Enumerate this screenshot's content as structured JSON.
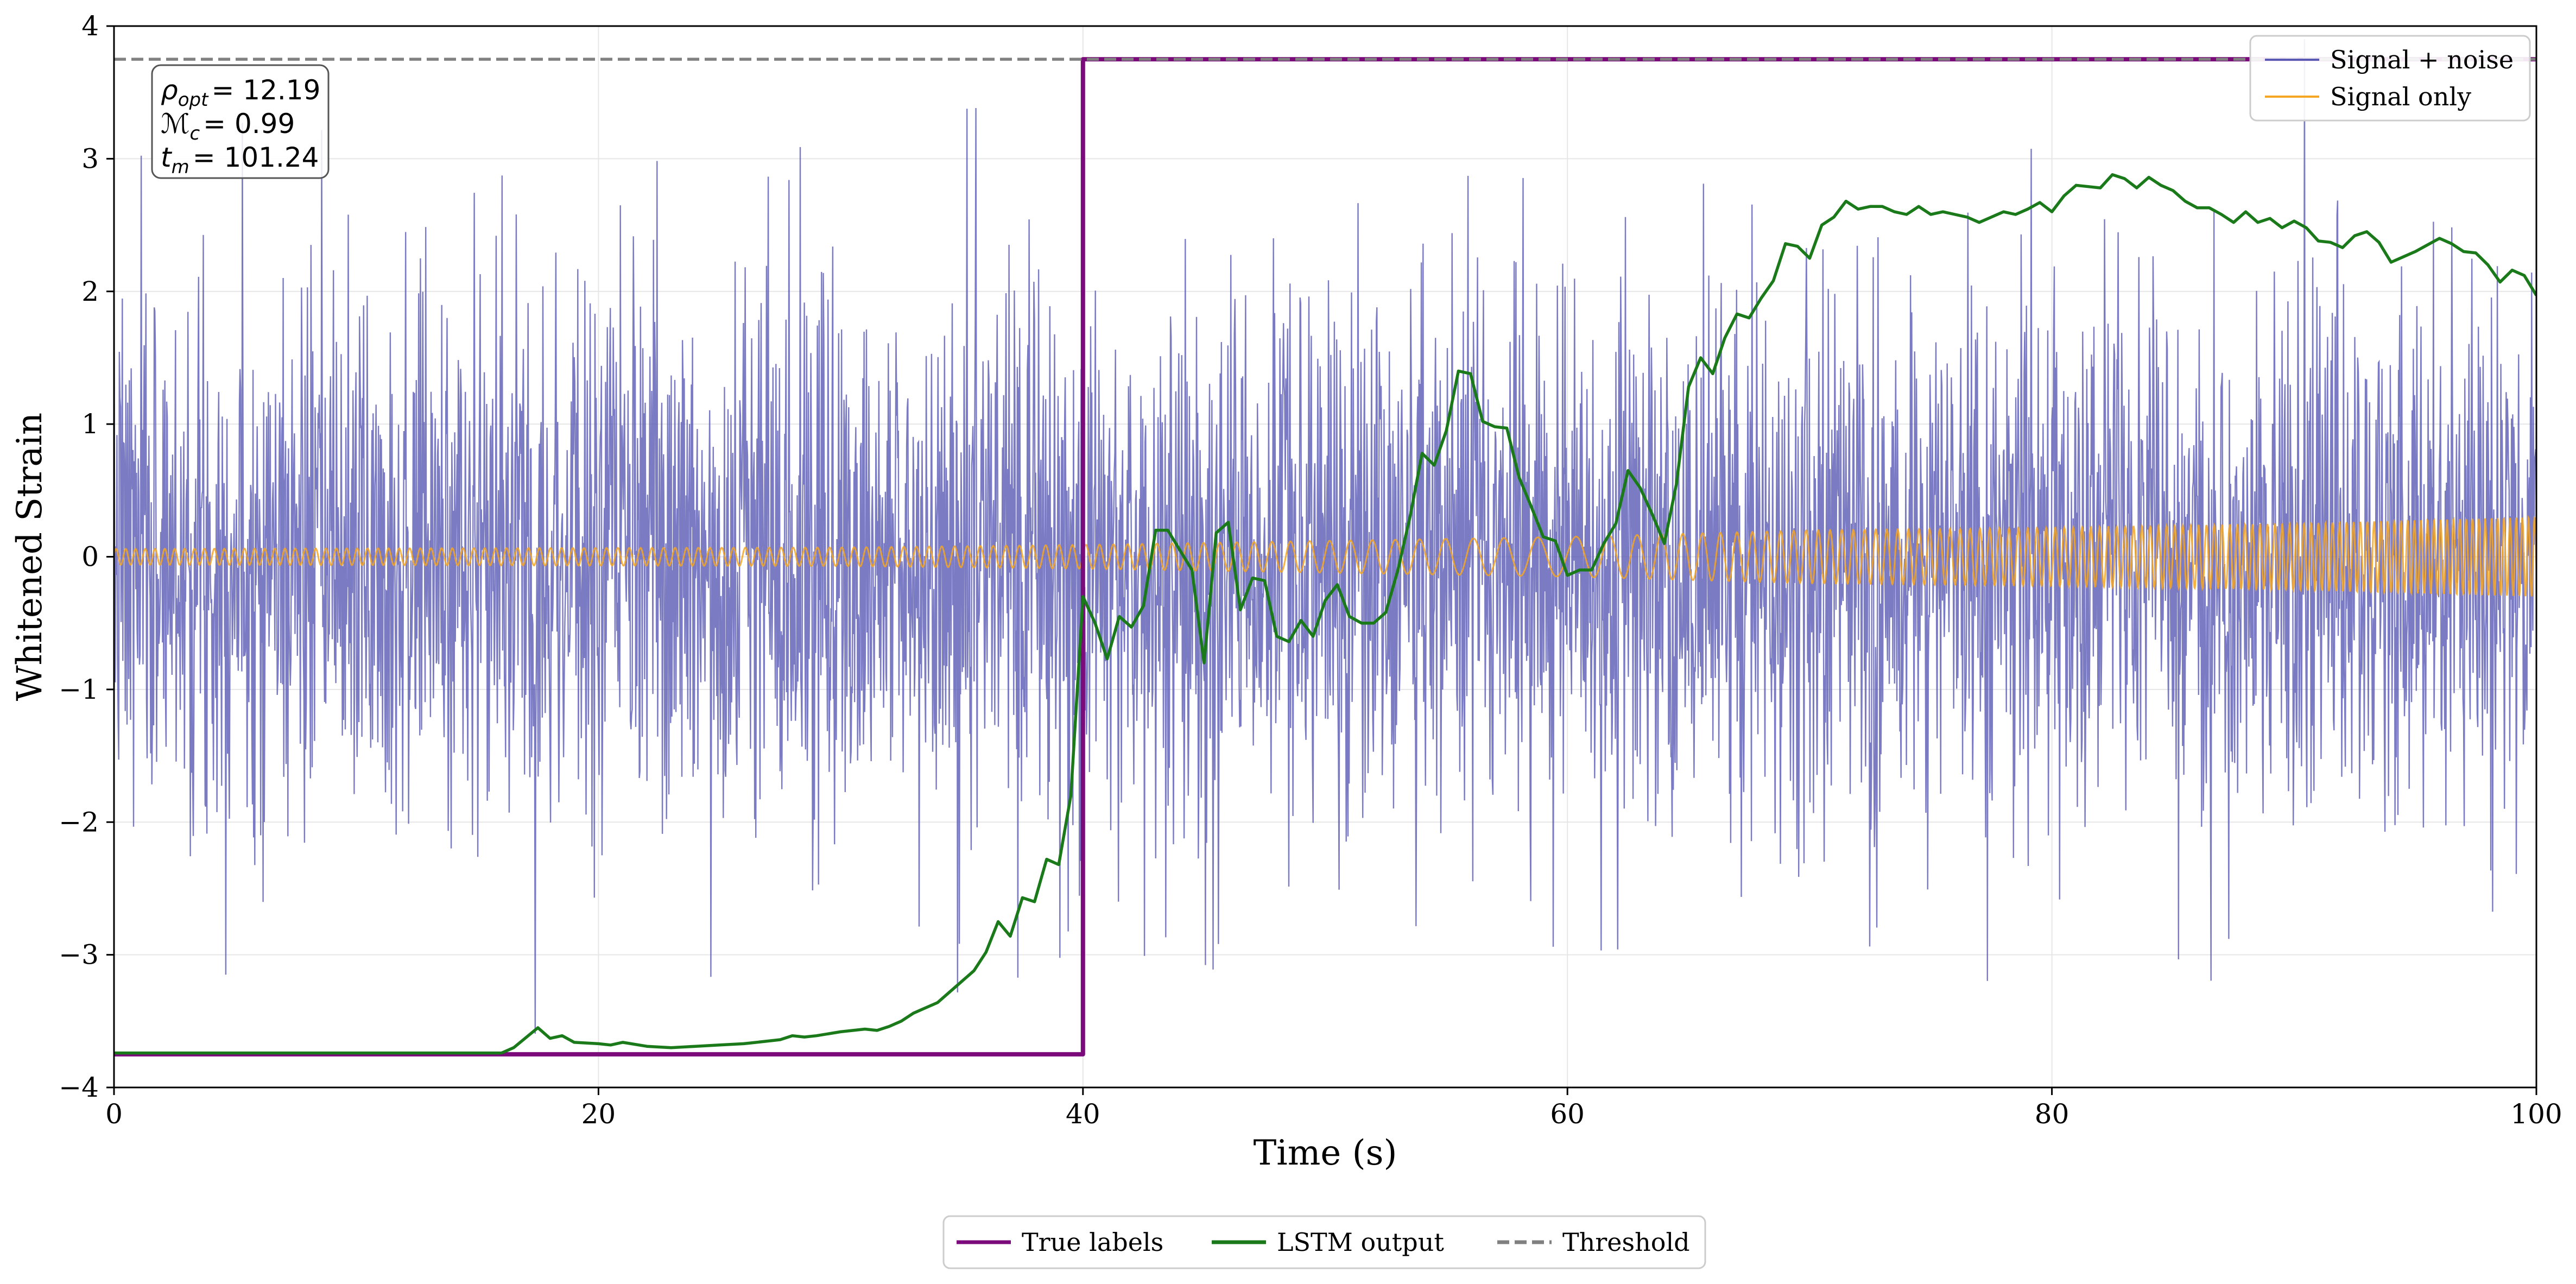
{
  "chart_data": {
    "type": "line",
    "title": "",
    "xlabel": "Time (s)",
    "ylabel": "Whitened Strain",
    "xlim": [
      0,
      100
    ],
    "ylim": [
      -4,
      4
    ],
    "xticks": [
      0,
      20,
      40,
      60,
      80,
      100
    ],
    "xtick_labels": [
      "0",
      "20",
      "40",
      "60",
      "80",
      "100"
    ],
    "yticks": [
      -4,
      -3,
      -2,
      -1,
      0,
      1,
      2,
      3,
      4
    ],
    "ytick_labels": [
      "−4",
      "−3",
      "−2",
      "−1",
      "0",
      "1",
      "2",
      "3",
      "4"
    ],
    "grid": true,
    "annotation": {
      "lines": [
        {
          "sym": "ρ",
          "sub": "opt",
          "value": "= 12.19"
        },
        {
          "sym": "ℳ",
          "sub": "c",
          "value": "= 0.99"
        },
        {
          "sym": "t",
          "sub": "m",
          "value": "= 101.24"
        }
      ],
      "placement": "top-left"
    },
    "legend_inner": {
      "placement": "top-right",
      "entries": [
        {
          "label": "Signal + noise",
          "color": "#5a5ab4"
        },
        {
          "label": "Signal only",
          "color": "#f5a623"
        }
      ]
    },
    "legend_outer": {
      "placement": "bottom-center",
      "entries": [
        {
          "label": "True labels",
          "color": "#7b0a7b",
          "style": "solid"
        },
        {
          "label": "LSTM output",
          "color": "#1a7a1a",
          "style": "solid"
        },
        {
          "label": "Threshold",
          "color": "#808080",
          "style": "dashed"
        }
      ]
    },
    "series": [
      {
        "name": "Signal + noise",
        "color": "#5a5ab4",
        "kind": "noise",
        "n_samples": 4096,
        "std": 1.0,
        "seed": 7,
        "x_range": [
          0,
          100
        ]
      },
      {
        "name": "Signal only",
        "color": "#f5a623",
        "kind": "chirp",
        "x_range": [
          0,
          100
        ],
        "envelope_points": [
          [
            0,
            0.06
          ],
          [
            30,
            0.07
          ],
          [
            40,
            0.09
          ],
          [
            50,
            0.12
          ],
          [
            60,
            0.15
          ],
          [
            70,
            0.2
          ],
          [
            80,
            0.22
          ],
          [
            90,
            0.25
          ],
          [
            100,
            0.3
          ]
        ],
        "frequency_points": [
          [
            0,
            2.5
          ],
          [
            40,
            1.8
          ],
          [
            55,
            0.9
          ],
          [
            60,
            0.6
          ],
          [
            65,
            1.2
          ],
          [
            70,
            2.0
          ],
          [
            85,
            3.0
          ],
          [
            100,
            4.0
          ]
        ]
      },
      {
        "name": "True labels",
        "color": "#7b0a7b",
        "kind": "step",
        "points": [
          [
            0,
            -3.75
          ],
          [
            40,
            -3.75
          ],
          [
            40,
            3.75
          ],
          [
            100,
            3.75
          ]
        ]
      },
      {
        "name": "Threshold",
        "color": "#808080",
        "kind": "hline",
        "y": 3.75
      },
      {
        "name": "LSTM output",
        "color": "#1a7a1a",
        "kind": "line",
        "points": [
          [
            0,
            -3.74
          ],
          [
            16,
            -3.74
          ],
          [
            16.5,
            -3.7
          ],
          [
            17.5,
            -3.55
          ],
          [
            18,
            -3.63
          ],
          [
            18.5,
            -3.61
          ],
          [
            19,
            -3.66
          ],
          [
            20,
            -3.67
          ],
          [
            20.5,
            -3.68
          ],
          [
            21,
            -3.66
          ],
          [
            22,
            -3.69
          ],
          [
            23,
            -3.7
          ],
          [
            24,
            -3.69
          ],
          [
            25,
            -3.68
          ],
          [
            26,
            -3.67
          ],
          [
            27,
            -3.65
          ],
          [
            27.5,
            -3.64
          ],
          [
            28,
            -3.61
          ],
          [
            28.5,
            -3.62
          ],
          [
            29,
            -3.61
          ],
          [
            30,
            -3.58
          ],
          [
            31,
            -3.56
          ],
          [
            31.5,
            -3.57
          ],
          [
            32,
            -3.54
          ],
          [
            32.5,
            -3.5
          ],
          [
            33,
            -3.44
          ],
          [
            33.5,
            -3.4
          ],
          [
            34,
            -3.36
          ],
          [
            34.5,
            -3.28
          ],
          [
            35,
            -3.2
          ],
          [
            35.5,
            -3.12
          ],
          [
            36,
            -2.98
          ],
          [
            36.5,
            -2.75
          ],
          [
            37,
            -2.86
          ],
          [
            37.5,
            -2.57
          ],
          [
            38,
            -2.6
          ],
          [
            38.5,
            -2.28
          ],
          [
            39,
            -2.32
          ],
          [
            39.5,
            -1.8
          ],
          [
            40,
            -0.3
          ],
          [
            40.5,
            -0.5
          ],
          [
            41,
            -0.77
          ],
          [
            41.5,
            -0.45
          ],
          [
            42,
            -0.53
          ],
          [
            42.5,
            -0.37
          ],
          [
            43,
            0.2
          ],
          [
            43.5,
            0.2
          ],
          [
            44,
            0.05
          ],
          [
            44.5,
            -0.1
          ],
          [
            45,
            -0.8
          ],
          [
            45.5,
            0.18
          ],
          [
            46,
            0.26
          ],
          [
            46.5,
            -0.4
          ],
          [
            47,
            -0.16
          ],
          [
            47.5,
            -0.18
          ],
          [
            48,
            -0.6
          ],
          [
            48.5,
            -0.64
          ],
          [
            49,
            -0.48
          ],
          [
            49.5,
            -0.6
          ],
          [
            50,
            -0.33
          ],
          [
            50.5,
            -0.21
          ],
          [
            51,
            -0.45
          ],
          [
            51.5,
            -0.5
          ],
          [
            52,
            -0.5
          ],
          [
            52.5,
            -0.42
          ],
          [
            53,
            -0.1
          ],
          [
            53.5,
            0.3
          ],
          [
            54,
            0.78
          ],
          [
            54.5,
            0.69
          ],
          [
            55,
            0.95
          ],
          [
            55.5,
            1.4
          ],
          [
            56,
            1.38
          ],
          [
            56.5,
            1.02
          ],
          [
            57,
            0.98
          ],
          [
            57.5,
            0.97
          ],
          [
            58,
            0.6
          ],
          [
            58.5,
            0.38
          ],
          [
            59,
            0.15
          ],
          [
            59.5,
            0.12
          ],
          [
            60,
            -0.14
          ],
          [
            60.5,
            -0.1
          ],
          [
            61,
            -0.1
          ],
          [
            61.5,
            0.1
          ],
          [
            62,
            0.25
          ],
          [
            62.5,
            0.65
          ],
          [
            63,
            0.52
          ],
          [
            63.5,
            0.32
          ],
          [
            64,
            0.1
          ],
          [
            64.5,
            0.55
          ],
          [
            65,
            1.28
          ],
          [
            65.5,
            1.5
          ],
          [
            66,
            1.38
          ],
          [
            66.5,
            1.65
          ],
          [
            67,
            1.83
          ],
          [
            67.5,
            1.8
          ],
          [
            68,
            1.95
          ],
          [
            68.5,
            2.08
          ],
          [
            69,
            2.36
          ],
          [
            69.5,
            2.34
          ],
          [
            70,
            2.25
          ],
          [
            70.5,
            2.5
          ],
          [
            71,
            2.56
          ],
          [
            71.5,
            2.68
          ],
          [
            72,
            2.62
          ],
          [
            72.5,
            2.64
          ],
          [
            73,
            2.64
          ],
          [
            73.5,
            2.6
          ],
          [
            74,
            2.58
          ],
          [
            74.5,
            2.64
          ],
          [
            75,
            2.58
          ],
          [
            75.5,
            2.6
          ],
          [
            76,
            2.58
          ],
          [
            76.5,
            2.56
          ],
          [
            77,
            2.52
          ],
          [
            77.5,
            2.56
          ],
          [
            78,
            2.6
          ],
          [
            78.5,
            2.58
          ],
          [
            79,
            2.62
          ],
          [
            79.5,
            2.67
          ],
          [
            80,
            2.6
          ],
          [
            80.5,
            2.72
          ],
          [
            81,
            2.8
          ],
          [
            81.5,
            2.79
          ],
          [
            82,
            2.78
          ],
          [
            82.5,
            2.88
          ],
          [
            83,
            2.85
          ],
          [
            83.5,
            2.78
          ],
          [
            84,
            2.86
          ],
          [
            84.5,
            2.8
          ],
          [
            85,
            2.76
          ],
          [
            85.5,
            2.68
          ],
          [
            86,
            2.63
          ],
          [
            86.5,
            2.63
          ],
          [
            87,
            2.58
          ],
          [
            87.5,
            2.52
          ],
          [
            88,
            2.6
          ],
          [
            88.5,
            2.52
          ],
          [
            89,
            2.55
          ],
          [
            89.5,
            2.48
          ],
          [
            90,
            2.53
          ],
          [
            90.5,
            2.48
          ],
          [
            91,
            2.38
          ],
          [
            91.5,
            2.37
          ],
          [
            92,
            2.33
          ],
          [
            92.5,
            2.42
          ],
          [
            93,
            2.45
          ],
          [
            93.5,
            2.37
          ],
          [
            94,
            2.22
          ],
          [
            94.5,
            2.26
          ],
          [
            95,
            2.3
          ],
          [
            95.5,
            2.35
          ],
          [
            96,
            2.4
          ],
          [
            96.5,
            2.36
          ],
          [
            97,
            2.3
          ],
          [
            97.5,
            2.29
          ],
          [
            98,
            2.2
          ],
          [
            98.5,
            2.07
          ],
          [
            99,
            2.16
          ],
          [
            99.5,
            2.12
          ],
          [
            100,
            1.97
          ]
        ]
      }
    ]
  }
}
